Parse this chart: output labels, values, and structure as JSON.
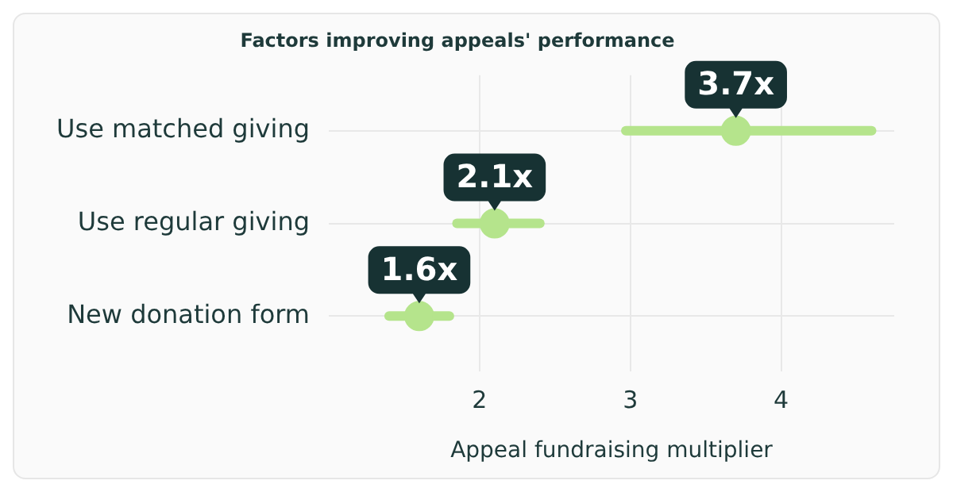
{
  "chart_data": {
    "type": "scatter",
    "orientation": "horizontal",
    "title": "Factors improving appeals' performance",
    "xlabel": "Appeal fundraising multiplier",
    "categories": [
      "Use matched giving",
      "Use regular giving",
      "New donation form"
    ],
    "values": [
      3.7,
      2.1,
      1.6
    ],
    "errors": [
      [
        2.97,
        4.6
      ],
      [
        1.85,
        2.4
      ],
      [
        1.4,
        1.8
      ]
    ],
    "value_labels": [
      "3.7x",
      "2.1x",
      "1.6x"
    ],
    "color": "#b5e48c",
    "marker": "circle",
    "xlim": [
      1.0,
      4.75
    ],
    "xticks": [
      2,
      3,
      4
    ],
    "grid": true
  }
}
